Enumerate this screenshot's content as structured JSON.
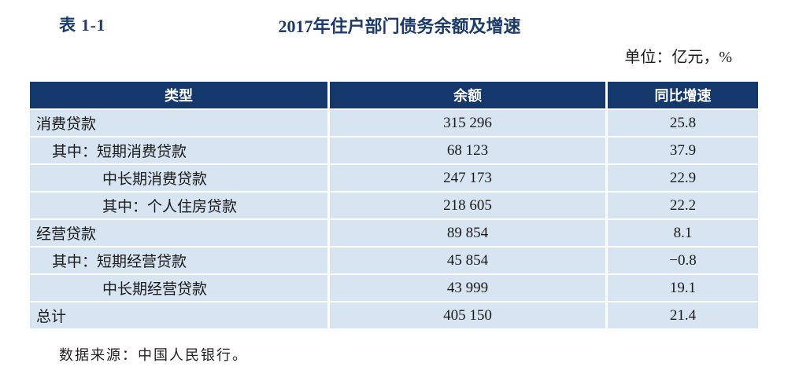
{
  "page": {
    "table_label": "表 1-1",
    "title": "2017年住户部门债务余额及增速",
    "unit": "单位：亿元，%",
    "source": "数据来源：中国人民银行。"
  },
  "table": {
    "columns": [
      "类型",
      "余额",
      "同比增速"
    ],
    "rows": [
      {
        "type": "消费贷款",
        "indent": 0,
        "balance": "315 296",
        "growth": "25.8"
      },
      {
        "type": "其中：短期消费贷款",
        "indent": 1,
        "balance": "68 123",
        "growth": "37.9"
      },
      {
        "type": "中长期消费贷款",
        "indent": 2,
        "balance": "247 173",
        "growth": "22.9"
      },
      {
        "type": "其中：个人住房贷款",
        "indent": 2,
        "balance": "218 605",
        "growth": "22.2"
      },
      {
        "type": "经营贷款",
        "indent": 0,
        "balance": "89 854",
        "growth": "8.1"
      },
      {
        "type": "其中：短期经营贷款",
        "indent": 1,
        "balance": "45 854",
        "growth": "−0.8"
      },
      {
        "type": "中长期经营贷款",
        "indent": 2,
        "balance": "43 999",
        "growth": "19.1"
      },
      {
        "type": "总计",
        "indent": 0,
        "balance": "405 150",
        "growth": "21.4"
      }
    ]
  },
  "colors": {
    "header_bg": "#14386c",
    "row_bg": "#d7e4f1",
    "title_navy": "#1b3a6b",
    "page_bg": "#ffffff"
  }
}
